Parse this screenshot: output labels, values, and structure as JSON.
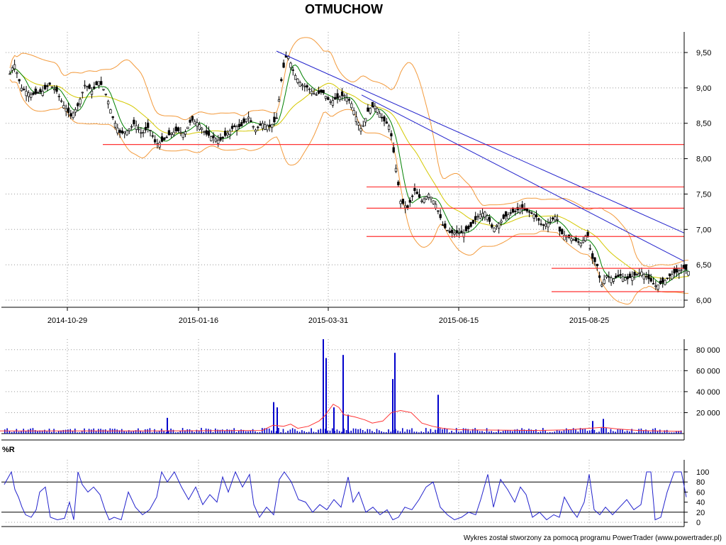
{
  "title": "OTMUCHOW",
  "footer": "Wykres został stworzony za pomocą programu PowerTrader (www.powertrader.pl)",
  "colors": {
    "price_line": "#000000",
    "up_candle": "#ffffff",
    "down_candle": "#000000",
    "ma_short": "#008000",
    "ma_long": "#d4c800",
    "bollinger": "#f39a3c",
    "support_resistance": "#ff3333",
    "trendline": "#2222cc",
    "volume_bars": "#0000cc",
    "volume_avg": "#ff3333",
    "williams_r": "#2222cc",
    "grid": "#999999"
  },
  "chart_data": [
    {
      "type": "candlestick",
      "name": "price",
      "x_tick_labels": [
        "2014-10-29",
        "2015-01-16",
        "2015-03-31",
        "2015-06-15",
        "2015-08-25"
      ],
      "y_ticks": [
        "6,00",
        "6,50",
        "7,00",
        "7,50",
        "8,00",
        "8,50",
        "9,00",
        "9,50"
      ],
      "ylim": [
        6.0,
        9.5
      ],
      "grid": true,
      "overlays": [
        "moving average (short)",
        "moving average (long)",
        "Bollinger bands"
      ],
      "close_path": [
        [
          0,
          9.1
        ],
        [
          10,
          9.35
        ],
        [
          20,
          9.0
        ],
        [
          35,
          8.9
        ],
        [
          50,
          8.95
        ],
        [
          60,
          9.05
        ],
        [
          70,
          8.95
        ],
        [
          80,
          8.75
        ],
        [
          90,
          8.6
        ],
        [
          100,
          8.75
        ],
        [
          110,
          9.05
        ],
        [
          120,
          8.95
        ],
        [
          130,
          9.1
        ],
        [
          140,
          8.9
        ],
        [
          150,
          8.55
        ],
        [
          160,
          8.35
        ],
        [
          170,
          8.4
        ],
        [
          180,
          8.5
        ],
        [
          190,
          8.35
        ],
        [
          200,
          8.45
        ],
        [
          210,
          8.2
        ],
        [
          220,
          8.25
        ],
        [
          230,
          8.35
        ],
        [
          240,
          8.4
        ],
        [
          250,
          8.35
        ],
        [
          260,
          8.55
        ],
        [
          270,
          8.5
        ],
        [
          280,
          8.35
        ],
        [
          290,
          8.3
        ],
        [
          300,
          8.25
        ],
        [
          310,
          8.35
        ],
        [
          320,
          8.45
        ],
        [
          330,
          8.45
        ],
        [
          340,
          8.6
        ],
        [
          350,
          8.4
        ],
        [
          360,
          8.5
        ],
        [
          370,
          8.45
        ],
        [
          380,
          8.55
        ],
        [
          388,
          9.2
        ],
        [
          395,
          9.5
        ],
        [
          405,
          9.2
        ],
        [
          415,
          9.05
        ],
        [
          425,
          9.0
        ],
        [
          435,
          8.9
        ],
        [
          445,
          8.95
        ],
        [
          455,
          8.8
        ],
        [
          465,
          8.85
        ],
        [
          475,
          8.9
        ],
        [
          485,
          8.8
        ],
        [
          492,
          8.6
        ],
        [
          500,
          8.4
        ],
        [
          510,
          8.7
        ],
        [
          520,
          8.75
        ],
        [
          530,
          8.55
        ],
        [
          540,
          8.45
        ],
        [
          548,
          7.9
        ],
        [
          555,
          7.4
        ],
        [
          565,
          7.3
        ],
        [
          575,
          7.55
        ],
        [
          585,
          7.4
        ],
        [
          595,
          7.5
        ],
        [
          605,
          7.35
        ],
        [
          615,
          7.05
        ],
        [
          625,
          6.95
        ],
        [
          635,
          6.95
        ],
        [
          645,
          6.95
        ],
        [
          655,
          7.05
        ],
        [
          665,
          7.2
        ],
        [
          675,
          7.25
        ],
        [
          685,
          7.0
        ],
        [
          695,
          7.1
        ],
        [
          705,
          7.2
        ],
        [
          715,
          7.25
        ],
        [
          725,
          7.3
        ],
        [
          735,
          7.25
        ],
        [
          745,
          7.2
        ],
        [
          755,
          7.05
        ],
        [
          765,
          7.1
        ],
        [
          775,
          7.2
        ],
        [
          780,
          6.95
        ],
        [
          790,
          6.9
        ],
        [
          800,
          6.85
        ],
        [
          810,
          6.8
        ],
        [
          818,
          6.95
        ],
        [
          825,
          6.6
        ],
        [
          832,
          6.5
        ],
        [
          838,
          6.2
        ],
        [
          845,
          6.35
        ],
        [
          855,
          6.3
        ],
        [
          865,
          6.35
        ],
        [
          875,
          6.3
        ],
        [
          885,
          6.35
        ],
        [
          895,
          6.4
        ],
        [
          905,
          6.3
        ],
        [
          915,
          6.2
        ],
        [
          925,
          6.25
        ],
        [
          935,
          6.35
        ],
        [
          945,
          6.4
        ],
        [
          955,
          6.45
        ],
        [
          962,
          6.4
        ]
      ],
      "horizontal_levels": [
        8.2,
        7.6,
        7.3,
        6.9,
        6.45,
        6.12
      ],
      "trendlines": [
        {
          "from": [
            390,
            9.52
          ],
          "to": [
            965,
            6.95
          ]
        },
        {
          "from": [
            510,
            8.9
          ],
          "to": [
            965,
            6.55
          ]
        }
      ]
    },
    {
      "type": "bar",
      "name": "volume",
      "y_ticks": [
        "20 000",
        "40 000",
        "60 000",
        "80 000"
      ],
      "ylim": [
        0,
        90000
      ],
      "spikes": [
        [
          385,
          30000
        ],
        [
          390,
          25000
        ],
        [
          455,
          90000
        ],
        [
          459,
          72000
        ],
        [
          470,
          25000
        ],
        [
          483,
          75000
        ],
        [
          553,
          52000
        ],
        [
          556,
          77000
        ],
        [
          617,
          37000
        ],
        [
          235,
          15000
        ],
        [
          850,
          14000
        ],
        [
          835,
          12000
        ],
        [
          490,
          18000
        ]
      ],
      "avg_path": [
        [
          0,
          2500
        ],
        [
          200,
          2500
        ],
        [
          370,
          3000
        ],
        [
          385,
          8000
        ],
        [
          400,
          7000
        ],
        [
          410,
          9000
        ],
        [
          420,
          5000
        ],
        [
          435,
          7000
        ],
        [
          450,
          12000
        ],
        [
          458,
          17000
        ],
        [
          470,
          28000
        ],
        [
          478,
          25000
        ],
        [
          485,
          18000
        ],
        [
          500,
          16000
        ],
        [
          515,
          13000
        ],
        [
          525,
          10000
        ],
        [
          540,
          12000
        ],
        [
          552,
          20000
        ],
        [
          565,
          22000
        ],
        [
          580,
          20000
        ],
        [
          595,
          10000
        ],
        [
          610,
          7000
        ],
        [
          625,
          5000
        ],
        [
          640,
          4000
        ],
        [
          660,
          3500
        ],
        [
          760,
          3000
        ],
        [
          800,
          3500
        ],
        [
          830,
          5000
        ],
        [
          850,
          6000
        ],
        [
          870,
          4500
        ],
        [
          900,
          3000
        ],
        [
          962,
          2000
        ]
      ]
    },
    {
      "type": "line",
      "name": "%R",
      "title": "%R",
      "y_ticks": [
        "0",
        "20",
        "40",
        "60",
        "80",
        "100"
      ],
      "ylim": [
        0,
        100
      ],
      "reference_lines": [
        20,
        80
      ],
      "path": [
        [
          0,
          75
        ],
        [
          10,
          100
        ],
        [
          15,
          65
        ],
        [
          20,
          50
        ],
        [
          25,
          30
        ],
        [
          30,
          15
        ],
        [
          38,
          10
        ],
        [
          45,
          25
        ],
        [
          50,
          60
        ],
        [
          58,
          70
        ],
        [
          65,
          10
        ],
        [
          75,
          5
        ],
        [
          85,
          8
        ],
        [
          92,
          40
        ],
        [
          98,
          5
        ],
        [
          104,
          100
        ],
        [
          110,
          75
        ],
        [
          118,
          60
        ],
        [
          126,
          70
        ],
        [
          135,
          55
        ],
        [
          142,
          25
        ],
        [
          148,
          5
        ],
        [
          155,
          10
        ],
        [
          165,
          5
        ],
        [
          175,
          60
        ],
        [
          185,
          30
        ],
        [
          195,
          15
        ],
        [
          205,
          25
        ],
        [
          215,
          50
        ],
        [
          222,
          100
        ],
        [
          230,
          80
        ],
        [
          240,
          100
        ],
        [
          250,
          70
        ],
        [
          260,
          45
        ],
        [
          270,
          70
        ],
        [
          280,
          35
        ],
        [
          290,
          55
        ],
        [
          300,
          40
        ],
        [
          308,
          90
        ],
        [
          316,
          60
        ],
        [
          326,
          100
        ],
        [
          336,
          70
        ],
        [
          346,
          95
        ],
        [
          352,
          35
        ],
        [
          360,
          10
        ],
        [
          370,
          30
        ],
        [
          380,
          15
        ],
        [
          388,
          85
        ],
        [
          395,
          100
        ],
        [
          405,
          80
        ],
        [
          415,
          45
        ],
        [
          425,
          40
        ],
        [
          435,
          20
        ],
        [
          445,
          35
        ],
        [
          455,
          25
        ],
        [
          465,
          45
        ],
        [
          475,
          30
        ],
        [
          485,
          90
        ],
        [
          492,
          40
        ],
        [
          500,
          60
        ],
        [
          510,
          20
        ],
        [
          520,
          30
        ],
        [
          530,
          15
        ],
        [
          540,
          25
        ],
        [
          548,
          5
        ],
        [
          556,
          10
        ],
        [
          565,
          30
        ],
        [
          575,
          25
        ],
        [
          585,
          45
        ],
        [
          595,
          70
        ],
        [
          605,
          80
        ],
        [
          615,
          30
        ],
        [
          625,
          15
        ],
        [
          635,
          5
        ],
        [
          645,
          10
        ],
        [
          655,
          20
        ],
        [
          665,
          15
        ],
        [
          672,
          45
        ],
        [
          682,
          95
        ],
        [
          690,
          30
        ],
        [
          700,
          85
        ],
        [
          710,
          65
        ],
        [
          720,
          40
        ],
        [
          728,
          70
        ],
        [
          736,
          55
        ],
        [
          745,
          10
        ],
        [
          755,
          20
        ],
        [
          765,
          5
        ],
        [
          775,
          15
        ],
        [
          783,
          10
        ],
        [
          790,
          50
        ],
        [
          800,
          25
        ],
        [
          808,
          10
        ],
        [
          818,
          40
        ],
        [
          825,
          95
        ],
        [
          832,
          25
        ],
        [
          840,
          15
        ],
        [
          848,
          30
        ],
        [
          858,
          15
        ],
        [
          868,
          30
        ],
        [
          878,
          45
        ],
        [
          888,
          25
        ],
        [
          898,
          35
        ],
        [
          906,
          100
        ],
        [
          912,
          100
        ],
        [
          918,
          5
        ],
        [
          926,
          10
        ],
        [
          935,
          60
        ],
        [
          945,
          100
        ],
        [
          955,
          100
        ],
        [
          962,
          50
        ]
      ]
    }
  ]
}
